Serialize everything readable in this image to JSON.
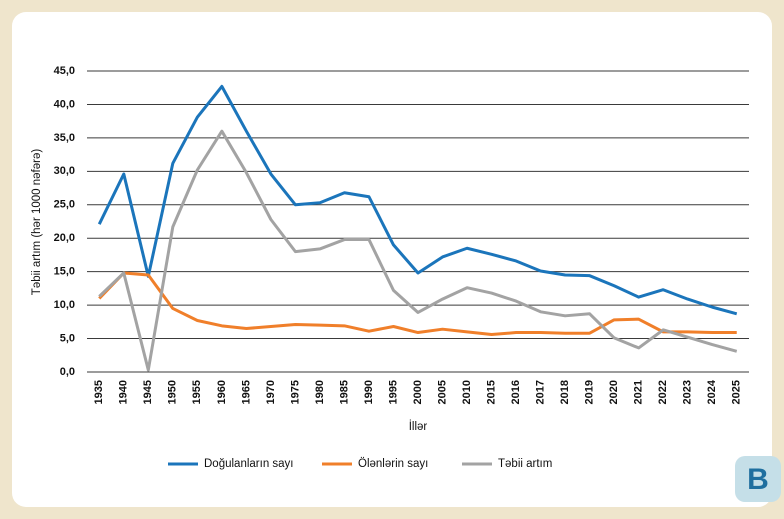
{
  "chart_data": {
    "type": "line",
    "ylabel": "Təbii artım (hər 1000 nəfərə)",
    "xlabel": "İllər",
    "categories": [
      "1935",
      "1940",
      "1945",
      "1950",
      "1955",
      "1960",
      "1965",
      "1970",
      "1975",
      "1980",
      "1985",
      "1990",
      "1995",
      "2000",
      "2005",
      "2010",
      "2015",
      "2016",
      "2017",
      "2018",
      "2019",
      "2020",
      "2021",
      "2022",
      "2023",
      "2024",
      "2025"
    ],
    "series": [
      {
        "name": "Doğulanların sayı",
        "color": "#1b75bb",
        "values": [
          22.1,
          29.6,
          14.3,
          31.2,
          38.1,
          42.7,
          36.0,
          29.6,
          25.0,
          25.3,
          26.8,
          26.2,
          19.0,
          14.8,
          17.2,
          18.5,
          17.6,
          16.6,
          15.1,
          14.5,
          14.4,
          12.9,
          11.2,
          12.3,
          10.9,
          9.7,
          8.7
        ]
      },
      {
        "name": "Ölənlərin sayı",
        "color": "#f07f2a",
        "values": [
          11.0,
          14.8,
          14.5,
          9.5,
          7.7,
          6.9,
          6.5,
          6.8,
          7.1,
          7.0,
          6.9,
          6.1,
          6.8,
          5.9,
          6.4,
          6.0,
          5.6,
          5.9,
          5.9,
          5.8,
          5.8,
          7.8,
          7.9,
          6.0,
          6.0,
          5.9,
          5.9
        ]
      },
      {
        "name": "Təbii artım",
        "color": "#a3a3a3",
        "values": [
          11.3,
          14.8,
          0.3,
          21.7,
          30.2,
          36.0,
          29.8,
          22.8,
          18.0,
          18.4,
          19.8,
          19.8,
          12.2,
          8.9,
          10.9,
          12.6,
          11.8,
          10.6,
          9.0,
          8.4,
          8.7,
          5.1,
          3.6,
          6.3,
          5.2,
          4.1,
          3.1
        ]
      }
    ],
    "ylim": [
      0,
      45
    ],
    "yticks": [
      {
        "value": 0,
        "label": "0,0"
      },
      {
        "value": 5,
        "label": "5,0"
      },
      {
        "value": 10,
        "label": "10,0"
      },
      {
        "value": 15,
        "label": "15,0"
      },
      {
        "value": 20,
        "label": "20,0"
      },
      {
        "value": 25,
        "label": "25,0"
      },
      {
        "value": 30,
        "label": "30,0"
      },
      {
        "value": 35,
        "label": "35,0"
      },
      {
        "value": 40,
        "label": "40,0"
      },
      {
        "value": 45,
        "label": "45,0"
      }
    ],
    "grid": true,
    "legend": "bottom"
  },
  "badge": "B"
}
